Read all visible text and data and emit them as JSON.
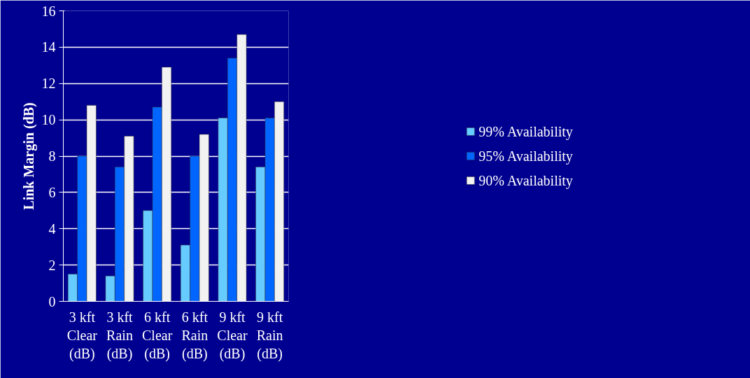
{
  "chart_data": {
    "type": "bar",
    "ylabel": "Link Margin (dB)",
    "categories": [
      "3 kft\nClear\n(dB)",
      "3 kft\nRain\n(dB)",
      "6 kft\nClear\n(dB)",
      "6 kft\nRain\n(dB)",
      "9 kft\nClear\n(dB)",
      "9 kft\nRain\n(dB)"
    ],
    "series": [
      {
        "name": "99% Availability",
        "color": "#66ccff",
        "values": [
          1.5,
          1.4,
          5.0,
          3.1,
          10.1,
          7.4
        ]
      },
      {
        "name": "95% Availability",
        "color": "#0066ff",
        "values": [
          8.0,
          7.4,
          10.7,
          8.0,
          13.4,
          10.1
        ]
      },
      {
        "name": "90% Availability",
        "color": "#f2f2f2",
        "values": [
          10.8,
          9.1,
          12.9,
          9.2,
          14.7,
          11.0
        ]
      }
    ],
    "ylim": [
      0,
      16
    ],
    "yticks": [
      0,
      2,
      4,
      6,
      8,
      10,
      12,
      14,
      16
    ],
    "grid": "y",
    "legend": "right"
  }
}
